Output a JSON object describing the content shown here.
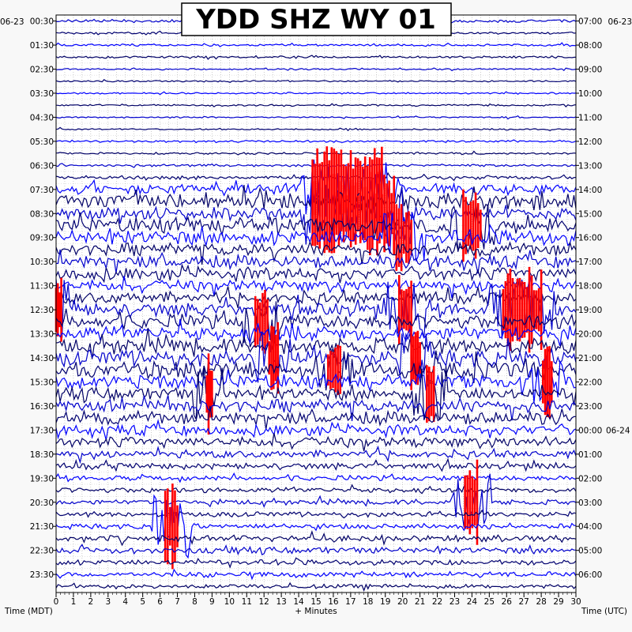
{
  "chart_data": {
    "type": "line",
    "title": "YDD SHZ WY 01",
    "xlabel": "+ Minutes",
    "left_axis_label": "Time (MDT)",
    "right_axis_label": "Time (UTC)",
    "left_date": "06-23",
    "right_date_top": "06-23",
    "right_date_next": "06-24",
    "x_ticks": [
      "0",
      "1",
      "2",
      "3",
      "4",
      "5",
      "6",
      "7",
      "8",
      "9",
      "10",
      "11",
      "12",
      "13",
      "14",
      "15",
      "16",
      "17",
      "18",
      "19",
      "20",
      "21",
      "22",
      "23",
      "24",
      "25",
      "26",
      "27",
      "28",
      "29",
      "30"
    ],
    "xlim": [
      0,
      30
    ],
    "rows": 48,
    "row_minutes": 30,
    "left_ticks": [
      "00:30",
      "01:30",
      "02:30",
      "03:30",
      "04:30",
      "05:30",
      "06:30",
      "07:30",
      "08:30",
      "09:30",
      "10:30",
      "11:30",
      "12:30",
      "13:30",
      "14:30",
      "15:30",
      "16:30",
      "17:30",
      "18:30",
      "19:30",
      "20:30",
      "21:30",
      "22:30",
      "23:30"
    ],
    "right_ticks": [
      "07:00",
      "08:00",
      "09:00",
      "10:00",
      "11:00",
      "12:00",
      "13:00",
      "14:00",
      "15:00",
      "16:00",
      "17:00",
      "18:00",
      "19:00",
      "20:00",
      "21:00",
      "22:00",
      "23:00",
      "00:00",
      "01:00",
      "02:00",
      "03:00",
      "04:00",
      "05:00",
      "06:00"
    ],
    "trace_colors": [
      "#0000cc",
      "#000070",
      "#0000ff",
      "#000066"
    ],
    "clip_color": "#ff0000",
    "grid": true,
    "row_activity": [
      0.3,
      0.2,
      0.2,
      0.2,
      0.15,
      0.15,
      0.15,
      0.15,
      0.15,
      0.15,
      0.2,
      0.2,
      0.25,
      0.35,
      1.0,
      1.6,
      1.2,
      1.4,
      1.4,
      1.2,
      1.2,
      1.2,
      1.1,
      1.1,
      1.3,
      1.4,
      1.4,
      1.5,
      1.6,
      1.6,
      1.3,
      1.2,
      1.2,
      1.2,
      1.0,
      1.0,
      0.7,
      0.6,
      0.5,
      0.5,
      0.5,
      0.5,
      0.5,
      0.6,
      0.6,
      0.5,
      0.5,
      0.4
    ],
    "events": [
      {
        "row": 14,
        "minute_start": 14.8,
        "minute_end": 18.8,
        "amplitude": 3,
        "clipped": true
      },
      {
        "row": 16,
        "minute_start": 14.8,
        "minute_end": 19.5,
        "amplitude": 3,
        "clipped": true
      },
      {
        "row": 18,
        "minute_start": 19.5,
        "minute_end": 20.5,
        "amplitude": 2.5,
        "clipped": true
      },
      {
        "row": 17,
        "minute_start": 23.5,
        "minute_end": 24.5,
        "amplitude": 2.5,
        "clipped": true
      },
      {
        "row": 24,
        "minute_start": 19.8,
        "minute_end": 20.5,
        "amplitude": 3,
        "clipped": true
      },
      {
        "row": 24,
        "minute_start": 25.8,
        "minute_end": 28.0,
        "amplitude": 3,
        "clipped": true
      },
      {
        "row": 24,
        "minute_start": 0.0,
        "minute_end": 0.3,
        "amplitude": 3,
        "clipped": true
      },
      {
        "row": 25,
        "minute_start": 11.5,
        "minute_end": 12.2,
        "amplitude": 2.5,
        "clipped": true
      },
      {
        "row": 28,
        "minute_start": 20.5,
        "minute_end": 21.0,
        "amplitude": 2.5,
        "clipped": true
      },
      {
        "row": 28,
        "minute_start": 12.3,
        "minute_end": 12.8,
        "amplitude": 2.5,
        "clipped": true
      },
      {
        "row": 29,
        "minute_start": 15.7,
        "minute_end": 16.4,
        "amplitude": 2,
        "clipped": true
      },
      {
        "row": 31,
        "minute_start": 8.7,
        "minute_end": 9.0,
        "amplitude": 3,
        "clipped": true
      },
      {
        "row": 31,
        "minute_start": 21.4,
        "minute_end": 21.8,
        "amplitude": 3,
        "clipped": true
      },
      {
        "row": 30,
        "minute_start": 28.1,
        "minute_end": 28.6,
        "amplitude": 2.5,
        "clipped": true
      },
      {
        "row": 40,
        "minute_start": 23.6,
        "minute_end": 24.3,
        "amplitude": 3,
        "clipped": true
      },
      {
        "row": 42,
        "minute_start": 6.3,
        "minute_end": 7.0,
        "amplitude": 3,
        "clipped": true
      }
    ]
  }
}
